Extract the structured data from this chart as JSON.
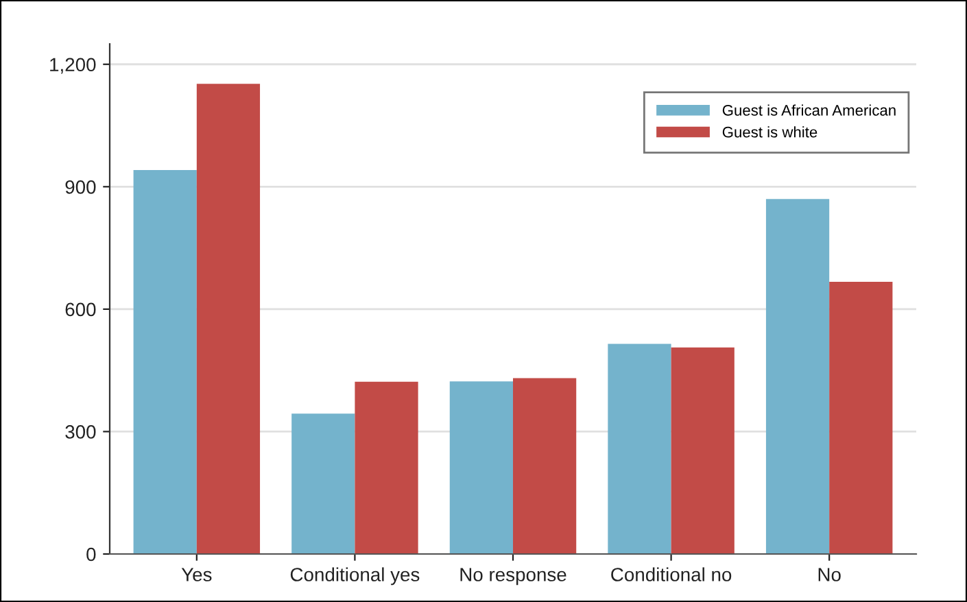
{
  "chart_data": {
    "type": "bar",
    "categories": [
      "Yes",
      "Conditional yes",
      "No response",
      "Conditional no",
      "No"
    ],
    "series": [
      {
        "name": "Guest is African American",
        "color": "#74b3cc",
        "values": [
          941,
          344,
          423,
          515,
          870
        ]
      },
      {
        "name": "Guest is white",
        "color": "#c24b47",
        "values": [
          1152,
          422,
          431,
          506,
          667
        ]
      }
    ],
    "ylim": [
      0,
      1250
    ],
    "yticks": [
      0,
      300,
      600,
      900,
      {
        "value": 1200,
        "label": "1,200"
      }
    ],
    "grid": "y",
    "legend": "top right"
  }
}
